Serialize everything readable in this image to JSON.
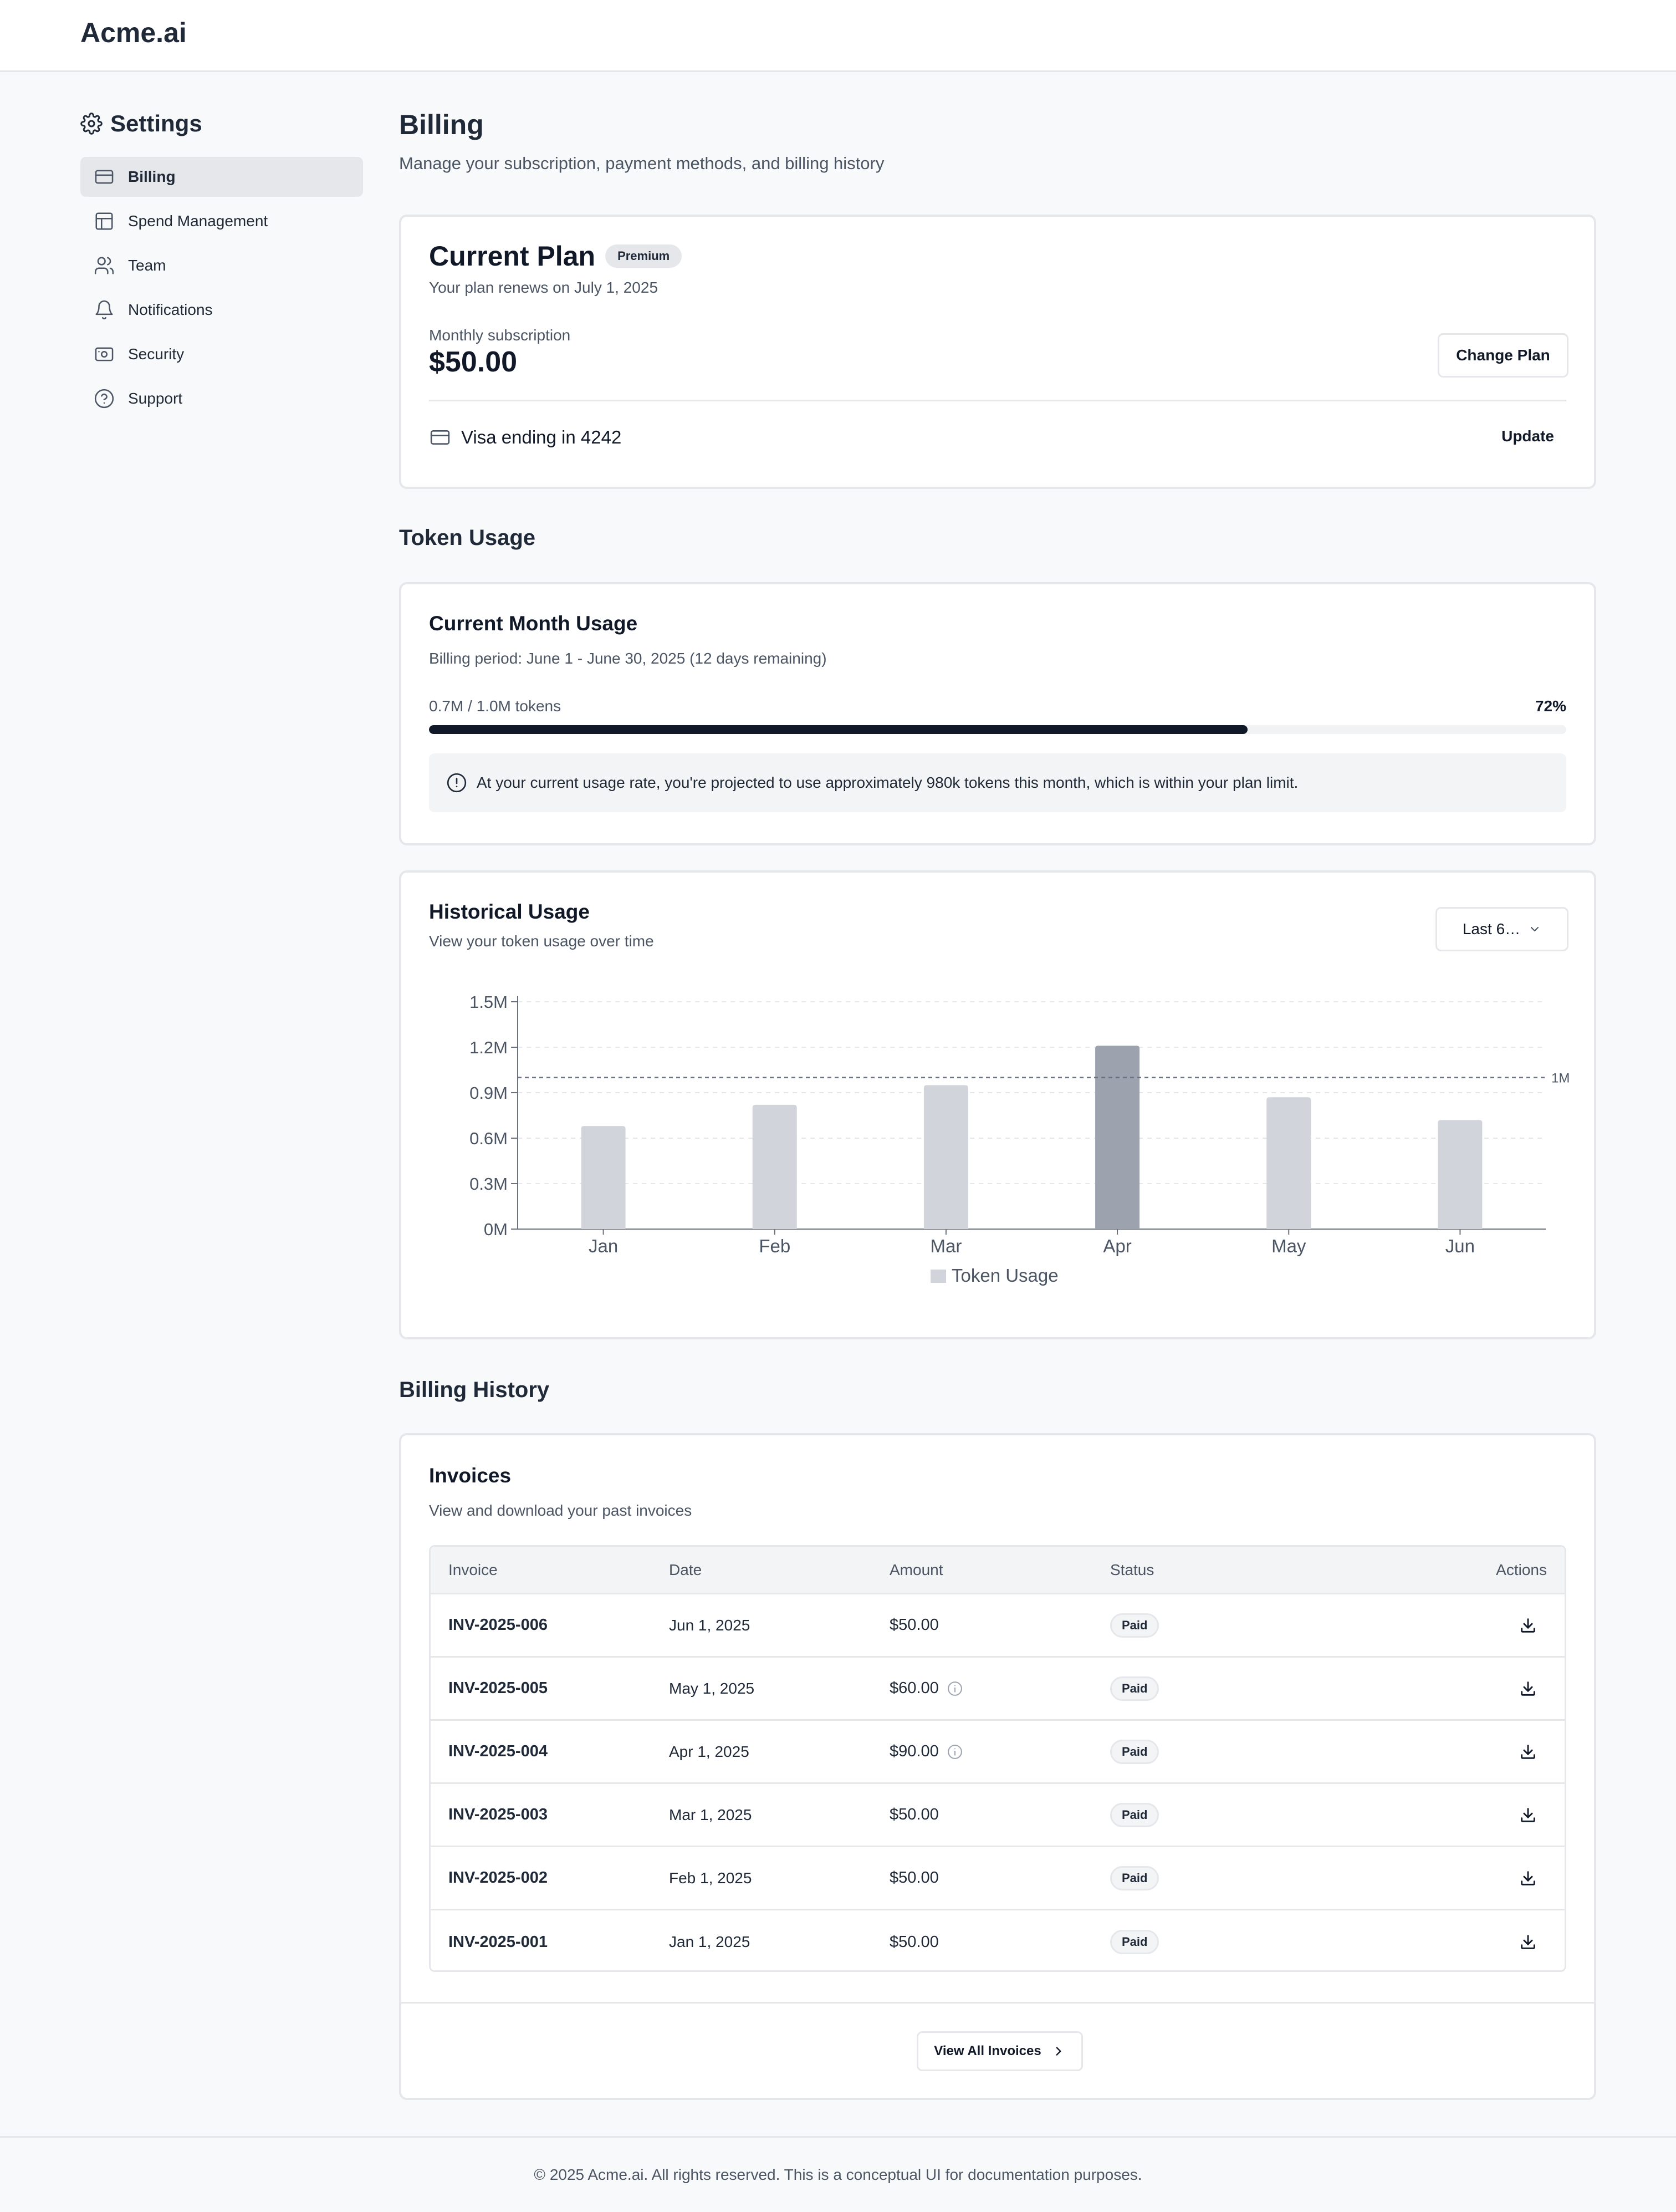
{
  "app": {
    "brand": "Acme.ai"
  },
  "sidebar": {
    "title": "Settings",
    "items": [
      {
        "label": "Billing",
        "icon": "credit-card-icon",
        "active": true
      },
      {
        "label": "Spend Management",
        "icon": "layout-icon",
        "active": false
      },
      {
        "label": "Team",
        "icon": "users-icon",
        "active": false
      },
      {
        "label": "Notifications",
        "icon": "bell-icon",
        "active": false
      },
      {
        "label": "Security",
        "icon": "shield-icon",
        "active": false
      },
      {
        "label": "Support",
        "icon": "help-circle-icon",
        "active": false
      }
    ]
  },
  "page": {
    "title": "Billing",
    "subtitle": "Manage your subscription, payment methods, and billing history"
  },
  "plan": {
    "title": "Current Plan",
    "badge": "Premium",
    "renews": "Your plan renews on July 1, 2025",
    "subscription_label": "Monthly subscription",
    "price": "$50.00",
    "change_button": "Change Plan",
    "card_text": "Visa ending in 4242",
    "update_button": "Update"
  },
  "usage": {
    "section_title": "Token Usage",
    "title": "Current Month Usage",
    "period": "Billing period: June 1 - June 30, 2025 (12 days remaining)",
    "tokens_label": "0.7M / 1.0M tokens",
    "percent_label": "72%",
    "progress": 0.72,
    "alert": "At your current usage rate, you're projected to use approximately 980k tokens this month, which is within your plan limit."
  },
  "historical": {
    "title": "Historical Usage",
    "subtitle": "View your token usage over time",
    "range_value": "Last 6…"
  },
  "chart_data": {
    "type": "bar",
    "categories": [
      "Jan",
      "Feb",
      "Mar",
      "Apr",
      "May",
      "Jun"
    ],
    "series": [
      {
        "name": "Token Usage",
        "values": [
          0.68,
          0.82,
          0.95,
          1.21,
          0.87,
          0.72
        ]
      }
    ],
    "highlight_category": "Apr",
    "y_ticks": [
      "0M",
      "0.3M",
      "0.6M",
      "0.9M",
      "1.2M",
      "1.5M"
    ],
    "ylim": [
      0,
      1.5
    ],
    "reference_line": {
      "value": 1.0,
      "label": "1M"
    },
    "grid": true,
    "legend": "bottom",
    "colors": {
      "bar": "#d1d5db",
      "highlight": "#9ca3af",
      "reference": "#6b7280"
    }
  },
  "billing": {
    "section_title": "Billing History",
    "title": "Invoices",
    "subtitle": "View and download your past invoices",
    "columns": [
      "Invoice",
      "Date",
      "Amount",
      "Status",
      "Actions"
    ],
    "rows": [
      {
        "id": "INV-2025-006",
        "date": "Jun 1, 2025",
        "amount": "$50.00",
        "info": false,
        "status": "Paid"
      },
      {
        "id": "INV-2025-005",
        "date": "May 1, 2025",
        "amount": "$60.00",
        "info": true,
        "status": "Paid"
      },
      {
        "id": "INV-2025-004",
        "date": "Apr 1, 2025",
        "amount": "$90.00",
        "info": true,
        "status": "Paid"
      },
      {
        "id": "INV-2025-003",
        "date": "Mar 1, 2025",
        "amount": "$50.00",
        "info": false,
        "status": "Paid"
      },
      {
        "id": "INV-2025-002",
        "date": "Feb 1, 2025",
        "amount": "$50.00",
        "info": false,
        "status": "Paid"
      },
      {
        "id": "INV-2025-001",
        "date": "Jan 1, 2025",
        "amount": "$50.00",
        "info": false,
        "status": "Paid"
      }
    ],
    "view_all": "View All Invoices"
  },
  "footer": {
    "text": "© 2025 Acme.ai. All rights reserved. This is a conceptual UI for documentation purposes."
  }
}
